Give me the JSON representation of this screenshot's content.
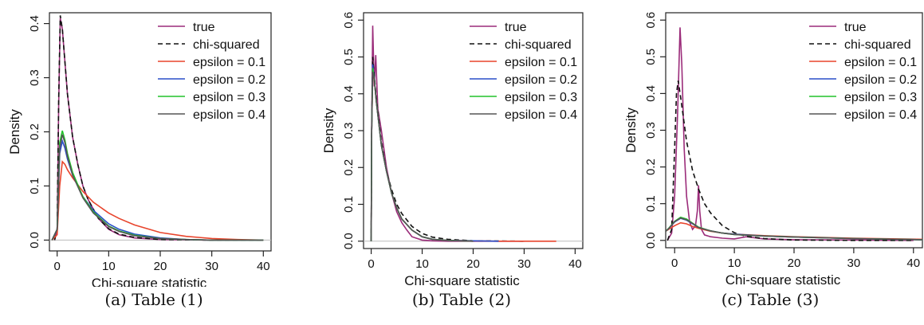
{
  "figure": {
    "captions": [
      "(a) Table (1)",
      "(b) Table (2)",
      "(c) Table (3)"
    ]
  },
  "chart_data": [
    {
      "type": "line",
      "xlabel": "Chi-square statistic",
      "ylabel": "Density",
      "xlim": [
        -1.5,
        41.5
      ],
      "ylim": [
        -0.02,
        0.42
      ],
      "xticks": [
        "0",
        "10",
        "20",
        "30",
        "40"
      ],
      "yticks": [
        "0.0",
        "0.1",
        "0.2",
        "0.3",
        "0.4"
      ],
      "grid": false,
      "legend_position": "top-right",
      "series": [
        {
          "name": "true",
          "color": "#9b2c7a",
          "dash": "solid",
          "x": [
            -0.5,
            0,
            0.3,
            0.6,
            1,
            1.5,
            2,
            3,
            4,
            5,
            6,
            8,
            10,
            12,
            15,
            20,
            30,
            40
          ],
          "y": [
            0,
            0.02,
            0.25,
            0.41,
            0.39,
            0.33,
            0.27,
            0.19,
            0.14,
            0.1,
            0.075,
            0.04,
            0.02,
            0.01,
            0.004,
            0.001,
            0,
            0
          ]
        },
        {
          "name": "chi-squared",
          "color": "#111111",
          "dash": "dashed",
          "x": [
            -0.5,
            0,
            0.3,
            0.6,
            1,
            1.5,
            2,
            3,
            4,
            5,
            6,
            8,
            10,
            12,
            15,
            20,
            30,
            40
          ],
          "y": [
            0,
            0.02,
            0.26,
            0.415,
            0.39,
            0.33,
            0.27,
            0.19,
            0.14,
            0.1,
            0.075,
            0.04,
            0.021,
            0.011,
            0.005,
            0.001,
            0,
            0
          ]
        },
        {
          "name": "epsilon = 0.1",
          "color": "#e8442c",
          "dash": "solid",
          "x": [
            -1,
            0,
            0.5,
            1,
            1.5,
            2,
            3,
            5,
            7,
            10,
            12,
            15,
            20,
            25,
            30,
            35,
            40
          ],
          "y": [
            0,
            0.01,
            0.1,
            0.145,
            0.14,
            0.13,
            0.115,
            0.09,
            0.07,
            0.05,
            0.04,
            0.028,
            0.014,
            0.007,
            0.003,
            0.001,
            0
          ]
        },
        {
          "name": "epsilon = 0.2",
          "color": "#2a4fc8",
          "dash": "solid",
          "x": [
            -1,
            0,
            0.5,
            1,
            1.5,
            2,
            3,
            5,
            7,
            10,
            12,
            15,
            20,
            25,
            30,
            40
          ],
          "y": [
            0,
            0.02,
            0.16,
            0.183,
            0.17,
            0.15,
            0.12,
            0.08,
            0.055,
            0.03,
            0.02,
            0.011,
            0.004,
            0.001,
            0,
            0
          ]
        },
        {
          "name": "epsilon = 0.3",
          "color": "#22c22a",
          "dash": "solid",
          "x": [
            -1,
            0,
            0.5,
            1,
            1.5,
            2,
            3,
            5,
            7,
            10,
            12,
            15,
            20,
            25,
            30,
            40
          ],
          "y": [
            0,
            0.02,
            0.18,
            0.202,
            0.185,
            0.16,
            0.125,
            0.08,
            0.052,
            0.026,
            0.017,
            0.009,
            0.003,
            0.001,
            0,
            0
          ]
        },
        {
          "name": "epsilon = 0.4",
          "color": "#555555",
          "dash": "solid",
          "x": [
            -1,
            0,
            0.5,
            1,
            1.5,
            2,
            3,
            5,
            7,
            10,
            12,
            15,
            20,
            25,
            30,
            40
          ],
          "y": [
            0,
            0.02,
            0.17,
            0.195,
            0.18,
            0.155,
            0.12,
            0.078,
            0.05,
            0.025,
            0.016,
            0.008,
            0.003,
            0.001,
            0,
            0
          ]
        }
      ]
    },
    {
      "type": "line",
      "xlabel": "Chi-square statistic",
      "ylabel": "Density",
      "xlim": [
        -1.5,
        41.5
      ],
      "ylim": [
        -0.02,
        0.62
      ],
      "xticks": [
        "0",
        "10",
        "20",
        "30",
        "40"
      ],
      "yticks": [
        "0.0",
        "0.1",
        "0.2",
        "0.3",
        "0.4",
        "0.5",
        "0.6"
      ],
      "grid": false,
      "legend_position": "top-right",
      "series": [
        {
          "name": "true",
          "color": "#9b2c7a",
          "dash": "solid",
          "x": [
            0,
            0.1,
            0.3,
            0.6,
            0.9,
            1.3,
            2,
            3,
            4,
            5,
            6,
            7,
            8,
            10,
            12,
            15,
            20,
            30
          ],
          "y": [
            0,
            0.32,
            0.585,
            0.42,
            0.505,
            0.36,
            0.3,
            0.2,
            0.13,
            0.08,
            0.05,
            0.03,
            0.012,
            0.003,
            0.001,
            0,
            0,
            0
          ]
        },
        {
          "name": "chi-squared",
          "color": "#111111",
          "dash": "dashed",
          "x": [
            0,
            0.1,
            0.3,
            0.6,
            1,
            1.5,
            2,
            3,
            4,
            5,
            6,
            8,
            10,
            12,
            15,
            20,
            30
          ],
          "y": [
            0,
            0.3,
            0.5,
            0.45,
            0.39,
            0.33,
            0.27,
            0.19,
            0.14,
            0.1,
            0.075,
            0.04,
            0.021,
            0.011,
            0.005,
            0.001,
            0
          ]
        },
        {
          "name": "epsilon = 0.1",
          "color": "#e8442c",
          "dash": "solid",
          "x": [
            0,
            0.1,
            0.3,
            0.6,
            1,
            1.5,
            2,
            3,
            4,
            5,
            6,
            8,
            10,
            12,
            15,
            20,
            25,
            30,
            36.3
          ],
          "y": [
            0,
            0.3,
            0.45,
            0.44,
            0.38,
            0.32,
            0.26,
            0.19,
            0.13,
            0.09,
            0.06,
            0.03,
            0.012,
            0.005,
            0.002,
            0.001,
            0,
            0,
            0
          ]
        },
        {
          "name": "epsilon = 0.2",
          "color": "#2a4fc8",
          "dash": "solid",
          "x": [
            0,
            0.1,
            0.3,
            0.6,
            1,
            1.5,
            2,
            3,
            4,
            5,
            6,
            8,
            10,
            12,
            15,
            20,
            25
          ],
          "y": [
            0,
            0.3,
            0.48,
            0.44,
            0.38,
            0.32,
            0.26,
            0.19,
            0.13,
            0.09,
            0.06,
            0.03,
            0.012,
            0.005,
            0.002,
            0.001,
            0
          ]
        },
        {
          "name": "epsilon = 0.3",
          "color": "#22c22a",
          "dash": "solid",
          "x": [
            0,
            0.1,
            0.3,
            0.6,
            1,
            1.5,
            2,
            3,
            4,
            5,
            6,
            8,
            10,
            12,
            15,
            20
          ],
          "y": [
            0,
            0.3,
            0.47,
            0.44,
            0.38,
            0.32,
            0.26,
            0.19,
            0.13,
            0.09,
            0.06,
            0.03,
            0.012,
            0.005,
            0.002,
            0
          ]
        },
        {
          "name": "epsilon = 0.4",
          "color": "#555555",
          "dash": "solid",
          "x": [
            0,
            0.1,
            0.3,
            0.6,
            1,
            1.5,
            2,
            3,
            4,
            5,
            6,
            8,
            10,
            12,
            15,
            20
          ],
          "y": [
            0,
            0.3,
            0.46,
            0.44,
            0.38,
            0.32,
            0.26,
            0.19,
            0.13,
            0.09,
            0.06,
            0.03,
            0.012,
            0.005,
            0.002,
            0
          ]
        }
      ]
    },
    {
      "type": "line",
      "xlabel": "Chi-square statistic",
      "ylabel": "Density",
      "xlim": [
        -1.5,
        41.5
      ],
      "ylim": [
        -0.02,
        0.62
      ],
      "xticks": [
        "0",
        "10",
        "20",
        "30",
        "40"
      ],
      "yticks": [
        "0.0",
        "0.1",
        "0.2",
        "0.3",
        "0.4",
        "0.5",
        "0.6"
      ],
      "grid": false,
      "legend_position": "top-right",
      "series": [
        {
          "name": "true",
          "color": "#9b2c7a",
          "dash": "solid",
          "x": [
            -1.2,
            -0.5,
            0,
            0.5,
            0.9,
            1.2,
            1.6,
            2,
            2.5,
            3,
            3.5,
            3.8,
            4,
            4.2,
            4.5,
            5,
            6,
            8,
            10,
            12,
            15,
            20,
            30,
            40
          ],
          "y": [
            0,
            0.02,
            0.12,
            0.35,
            0.58,
            0.48,
            0.25,
            0.12,
            0.05,
            0.03,
            0.04,
            0.08,
            0.15,
            0.08,
            0.03,
            0.015,
            0.01,
            0.006,
            0.004,
            0.01,
            0.004,
            0.002,
            0.001,
            0
          ]
        },
        {
          "name": "chi-squared",
          "color": "#111111",
          "dash": "dashed",
          "x": [
            -1.2,
            -0.5,
            0,
            0.3,
            0.6,
            1,
            1.5,
            2,
            3,
            4,
            5,
            6,
            8,
            10,
            12,
            15,
            20,
            30,
            40
          ],
          "y": [
            0,
            0.03,
            0.25,
            0.4,
            0.435,
            0.39,
            0.33,
            0.27,
            0.19,
            0.14,
            0.1,
            0.075,
            0.04,
            0.021,
            0.011,
            0.005,
            0.001,
            0,
            0
          ]
        },
        {
          "name": "epsilon = 0.1",
          "color": "#e8442c",
          "dash": "solid",
          "x": [
            -1.5,
            -1,
            0,
            1,
            2,
            3,
            4,
            6,
            8,
            10,
            15,
            20,
            30,
            41.5
          ],
          "y": [
            0.025,
            0.03,
            0.04,
            0.048,
            0.045,
            0.038,
            0.033,
            0.025,
            0.02,
            0.017,
            0.013,
            0.01,
            0.006,
            0.003
          ]
        },
        {
          "name": "epsilon = 0.2",
          "color": "#2a4fc8",
          "dash": "solid",
          "x": [
            -1.5,
            -1,
            0,
            1,
            2,
            3,
            4,
            6,
            8,
            10,
            15,
            20,
            30,
            41.5
          ],
          "y": [
            0.025,
            0.032,
            0.05,
            0.06,
            0.055,
            0.045,
            0.035,
            0.026,
            0.02,
            0.017,
            0.012,
            0.009,
            0.005,
            0.002
          ]
        },
        {
          "name": "epsilon = 0.3",
          "color": "#22c22a",
          "dash": "solid",
          "x": [
            -1.5,
            -1,
            0,
            1,
            2,
            3,
            4,
            6,
            8,
            10,
            15,
            20,
            30,
            41.5
          ],
          "y": [
            0.025,
            0.033,
            0.052,
            0.063,
            0.058,
            0.047,
            0.036,
            0.026,
            0.02,
            0.016,
            0.012,
            0.009,
            0.005,
            0.002
          ]
        },
        {
          "name": "epsilon = 0.4",
          "color": "#555555",
          "dash": "solid",
          "x": [
            -1.5,
            -1,
            0,
            1,
            2,
            3,
            4,
            6,
            8,
            10,
            15,
            20,
            30,
            41.5
          ],
          "y": [
            0.025,
            0.032,
            0.051,
            0.061,
            0.056,
            0.046,
            0.035,
            0.026,
            0.02,
            0.016,
            0.012,
            0.009,
            0.005,
            0.002
          ]
        }
      ]
    }
  ]
}
